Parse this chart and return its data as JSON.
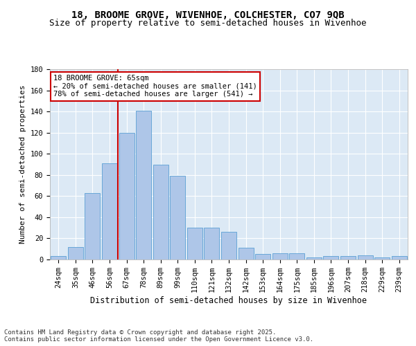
{
  "title1": "18, BROOME GROVE, WIVENHOE, COLCHESTER, CO7 9QB",
  "title2": "Size of property relative to semi-detached houses in Wivenhoe",
  "xlabel": "Distribution of semi-detached houses by size in Wivenhoe",
  "ylabel": "Number of semi-detached properties",
  "categories": [
    "24sqm",
    "35sqm",
    "46sqm",
    "56sqm",
    "67sqm",
    "78sqm",
    "89sqm",
    "99sqm",
    "110sqm",
    "121sqm",
    "132sqm",
    "142sqm",
    "153sqm",
    "164sqm",
    "175sqm",
    "185sqm",
    "196sqm",
    "207sqm",
    "218sqm",
    "229sqm",
    "239sqm"
  ],
  "values": [
    3,
    12,
    63,
    91,
    120,
    141,
    90,
    79,
    30,
    30,
    26,
    11,
    5,
    6,
    6,
    2,
    3,
    3,
    4,
    2,
    3
  ],
  "bar_color": "#aec6e8",
  "bar_edge_color": "#5a9fd4",
  "vline_x_index": 4,
  "vline_color": "#cc0000",
  "annotation_text": "18 BROOME GROVE: 65sqm\n← 20% of semi-detached houses are smaller (141)\n78% of semi-detached houses are larger (541) →",
  "annotation_box_color": "#ffffff",
  "annotation_box_edge": "#cc0000",
  "footer_text": "Contains HM Land Registry data © Crown copyright and database right 2025.\nContains public sector information licensed under the Open Government Licence v3.0.",
  "ylim": [
    0,
    180
  ],
  "yticks": [
    0,
    20,
    40,
    60,
    80,
    100,
    120,
    140,
    160,
    180
  ],
  "bg_color": "#dce9f5",
  "fig_bg_color": "#ffffff",
  "title1_fontsize": 10,
  "title2_fontsize": 9,
  "xlabel_fontsize": 8.5,
  "ylabel_fontsize": 8,
  "tick_fontsize": 7.5,
  "annotation_fontsize": 7.5,
  "footer_fontsize": 6.5
}
